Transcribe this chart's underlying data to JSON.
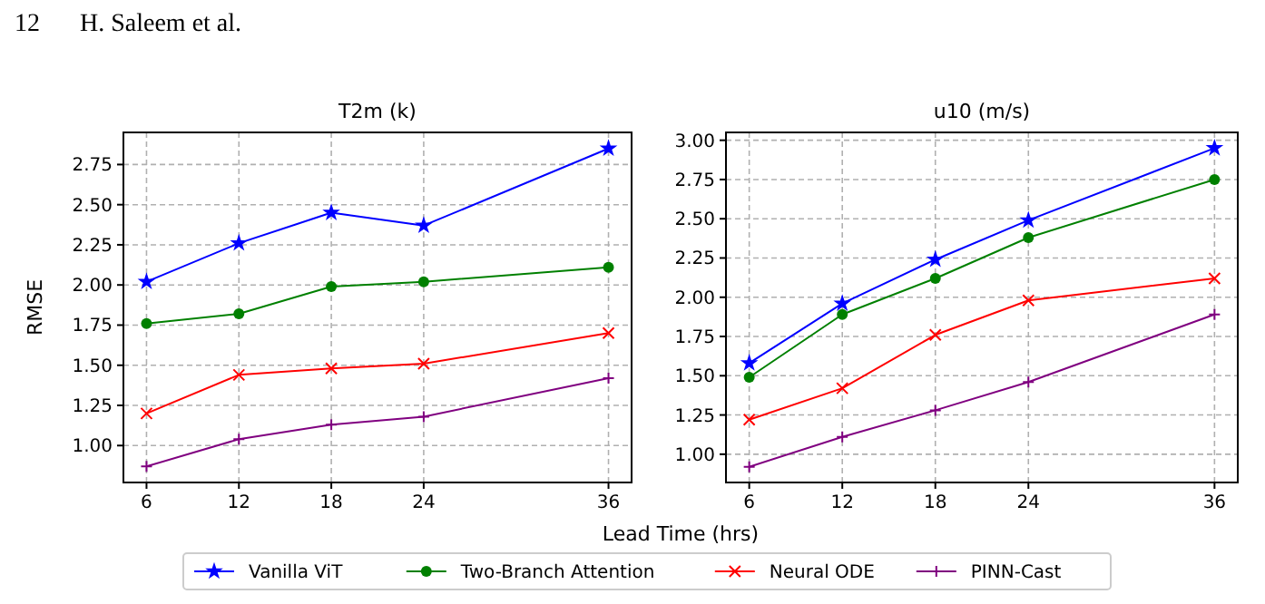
{
  "chart_data": [
    {
      "type": "line",
      "title": "T2m (k)",
      "xlabel": "Lead Time (hrs)",
      "ylabel": "RMSE",
      "annotations": [
        "12",
        "H. Saleem et al."
      ],
      "x": [
        6,
        12,
        18,
        24,
        36
      ],
      "xlim": [
        4.5,
        37.5
      ],
      "xticks": [
        6,
        12,
        18,
        24,
        36
      ],
      "ylim": [
        0.77,
        2.95
      ],
      "yticks": [
        {
          "value": 1,
          "label": "1.00"
        },
        {
          "value": 1.25,
          "label": "1.25"
        },
        {
          "value": 1.5,
          "label": "1.50"
        },
        {
          "value": 1.75,
          "label": "1.75"
        },
        {
          "value": 2,
          "label": "2.00"
        },
        {
          "value": 2.25,
          "label": "2.25"
        },
        {
          "value": 2.5,
          "label": "2.50"
        },
        {
          "value": 2.75,
          "label": "2.75"
        }
      ],
      "grid": true,
      "legend": "bottom",
      "line_style": "solid",
      "series": [
        {
          "name": "Vanilla ViT",
          "color": "#0000ff",
          "marker": "star",
          "values": [
            2.02,
            2.26,
            2.45,
            2.37,
            2.85
          ]
        },
        {
          "name": "Two-Branch Attention",
          "color": "#008000",
          "marker": "circle",
          "values": [
            1.76,
            1.82,
            1.99,
            2.02,
            2.11
          ]
        },
        {
          "name": "Neural ODE",
          "color": "#ff0000",
          "marker": "cross",
          "values": [
            1.2,
            1.44,
            1.48,
            1.51,
            1.7
          ]
        },
        {
          "name": "PINN-Cast",
          "color": "#800080",
          "marker": "plus",
          "values": [
            0.87,
            1.04,
            1.13,
            1.18,
            1.42
          ]
        }
      ]
    },
    {
      "type": "line",
      "title": "u10 (m/s)",
      "x": [
        6,
        12,
        18,
        24,
        36
      ],
      "xlim": [
        4.5,
        37.5
      ],
      "xticks": [
        6,
        12,
        18,
        24,
        36
      ],
      "ylim": [
        0.82,
        3.05
      ],
      "yticks": [
        {
          "value": 1,
          "label": "1.00"
        },
        {
          "value": 1.25,
          "label": "1.25"
        },
        {
          "value": 1.5,
          "label": "1.50"
        },
        {
          "value": 1.75,
          "label": "1.75"
        },
        {
          "value": 2,
          "label": "2.00"
        },
        {
          "value": 2.25,
          "label": "2.25"
        },
        {
          "value": 2.5,
          "label": "2.50"
        },
        {
          "value": 2.75,
          "label": "2.75"
        },
        {
          "value": 3,
          "label": "3.00"
        }
      ],
      "grid": true,
      "line_style": "solid",
      "series": [
        {
          "color": "#0000ff",
          "marker": "star",
          "values": [
            1.58,
            1.96,
            2.24,
            2.49,
            2.95
          ]
        },
        {
          "color": "#008000",
          "marker": "circle",
          "values": [
            1.49,
            1.89,
            2.12,
            2.38,
            2.75
          ]
        },
        {
          "color": "#ff0000",
          "marker": "cross",
          "values": [
            1.22,
            1.42,
            1.76,
            1.98,
            2.12
          ]
        },
        {
          "color": "#800080",
          "marker": "plus",
          "values": [
            0.92,
            1.11,
            1.28,
            1.46,
            1.89
          ]
        }
      ]
    }
  ]
}
